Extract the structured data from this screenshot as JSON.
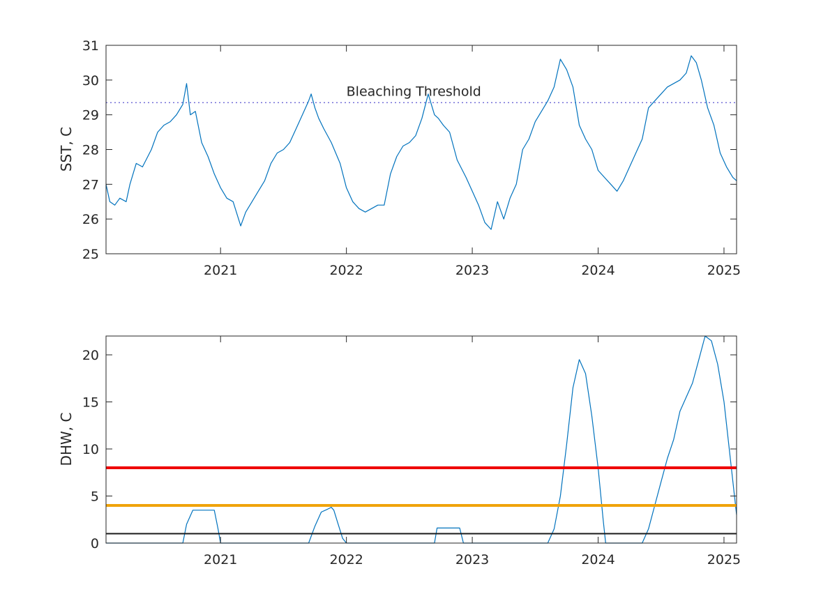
{
  "chart_data": [
    {
      "type": "line",
      "ylabel": "SST, C",
      "xlim": [
        2020.09,
        2025.1
      ],
      "ylim": [
        25,
        31
      ],
      "x_ticks": [
        2021,
        2022,
        2023,
        2024,
        2025
      ],
      "y_ticks": [
        25,
        26,
        27,
        28,
        29,
        30,
        31
      ],
      "grid": false,
      "annotations": [
        {
          "text": "Bleaching Threshold",
          "x": 2022.0,
          "y": 29.55
        }
      ],
      "reference_lines": [
        {
          "y": 29.35,
          "style": "dotted",
          "color": "#7570d8"
        }
      ],
      "series": [
        {
          "color": "#0072bd",
          "x": [
            2020.09,
            2020.12,
            2020.16,
            2020.2,
            2020.25,
            2020.28,
            2020.33,
            2020.38,
            2020.45,
            2020.5,
            2020.55,
            2020.6,
            2020.65,
            2020.7,
            2020.73,
            2020.76,
            2020.8,
            2020.85,
            2020.9,
            2020.95,
            2021.0,
            2021.05,
            2021.1,
            2021.16,
            2021.2,
            2021.25,
            2021.3,
            2021.35,
            2021.4,
            2021.45,
            2021.5,
            2021.55,
            2021.6,
            2021.65,
            2021.7,
            2021.72,
            2021.75,
            2021.78,
            2021.82,
            2021.88,
            2021.95,
            2022.0,
            2022.05,
            2022.1,
            2022.15,
            2022.2,
            2022.25,
            2022.3,
            2022.35,
            2022.4,
            2022.45,
            2022.5,
            2022.55,
            2022.6,
            2022.65,
            2022.7,
            2022.73,
            2022.77,
            2022.82,
            2022.88,
            2022.95,
            2023.0,
            2023.05,
            2023.1,
            2023.15,
            2023.2,
            2023.25,
            2023.3,
            2023.35,
            2023.4,
            2023.45,
            2023.5,
            2023.55,
            2023.6,
            2023.65,
            2023.7,
            2023.75,
            2023.8,
            2023.85,
            2023.9,
            2023.95,
            2024.0,
            2024.05,
            2024.1,
            2024.15,
            2024.2,
            2024.25,
            2024.3,
            2024.35,
            2024.4,
            2024.45,
            2024.5,
            2024.55,
            2024.6,
            2024.65,
            2024.7,
            2024.74,
            2024.78,
            2024.82,
            2024.87,
            2024.92,
            2024.97,
            2025.02,
            2025.07,
            2025.1
          ],
          "y": [
            27.0,
            26.5,
            26.4,
            26.6,
            26.5,
            27.0,
            27.6,
            27.5,
            28.0,
            28.5,
            28.7,
            28.8,
            29.0,
            29.3,
            29.9,
            29.0,
            29.1,
            28.2,
            27.8,
            27.3,
            26.9,
            26.6,
            26.5,
            25.8,
            26.2,
            26.5,
            26.8,
            27.1,
            27.6,
            27.9,
            28.0,
            28.2,
            28.6,
            29.0,
            29.4,
            29.6,
            29.2,
            28.9,
            28.6,
            28.2,
            27.6,
            26.9,
            26.5,
            26.3,
            26.2,
            26.3,
            26.4,
            26.4,
            27.3,
            27.8,
            28.1,
            28.2,
            28.4,
            28.9,
            29.6,
            29.0,
            28.9,
            28.7,
            28.5,
            27.7,
            27.2,
            26.8,
            26.4,
            25.9,
            25.7,
            26.5,
            26.0,
            26.6,
            27.0,
            28.0,
            28.3,
            28.8,
            29.1,
            29.4,
            29.8,
            30.6,
            30.3,
            29.8,
            28.7,
            28.3,
            28.0,
            27.4,
            27.2,
            27.0,
            26.8,
            27.1,
            27.5,
            27.9,
            28.3,
            29.2,
            29.4,
            29.6,
            29.8,
            29.9,
            30.0,
            30.2,
            30.7,
            30.5,
            30.0,
            29.2,
            28.7,
            27.9,
            27.5,
            27.2,
            27.1
          ]
        }
      ]
    },
    {
      "type": "line",
      "ylabel": "DHW, C",
      "xlim": [
        2020.09,
        2025.1
      ],
      "ylim": [
        0,
        22
      ],
      "x_ticks": [
        2021,
        2022,
        2023,
        2024,
        2025
      ],
      "y_ticks": [
        0,
        5,
        10,
        15,
        20
      ],
      "grid": false,
      "reference_lines": [
        {
          "y": 8,
          "color": "#ee0000",
          "width": "thick"
        },
        {
          "y": 4,
          "color": "#f0a30a",
          "width": "thick"
        },
        {
          "y": 1,
          "color": "#1a1a1a",
          "width": "thin"
        }
      ],
      "series": [
        {
          "color": "#0072bd",
          "x": [
            2020.09,
            2020.7,
            2020.73,
            2020.78,
            2020.95,
            2020.98,
            2021.0,
            2021.7,
            2021.75,
            2021.8,
            2021.85,
            2021.88,
            2021.9,
            2021.93,
            2021.97,
            2022.0,
            2022.7,
            2022.72,
            2022.9,
            2022.93,
            2023.6,
            2023.65,
            2023.7,
            2023.75,
            2023.8,
            2023.85,
            2023.9,
            2023.95,
            2024.0,
            2024.04,
            2024.06,
            2024.35,
            2024.4,
            2024.45,
            2024.5,
            2024.55,
            2024.6,
            2024.65,
            2024.7,
            2024.75,
            2024.8,
            2024.85,
            2024.9,
            2024.95,
            2025.0,
            2025.05,
            2025.1
          ],
          "y": [
            0,
            0,
            2.0,
            3.5,
            3.5,
            1.5,
            0,
            0,
            1.8,
            3.3,
            3.6,
            3.8,
            3.5,
            2.2,
            0.5,
            0,
            0,
            1.6,
            1.6,
            0,
            0,
            1.5,
            5.0,
            10.5,
            16.5,
            19.5,
            18.0,
            13.5,
            8.0,
            2.5,
            0,
            0,
            1.5,
            4.0,
            6.5,
            9.0,
            11.0,
            14.0,
            15.5,
            17.0,
            19.5,
            22.0,
            21.5,
            19.0,
            15.0,
            9.0,
            3.0
          ]
        }
      ]
    }
  ]
}
